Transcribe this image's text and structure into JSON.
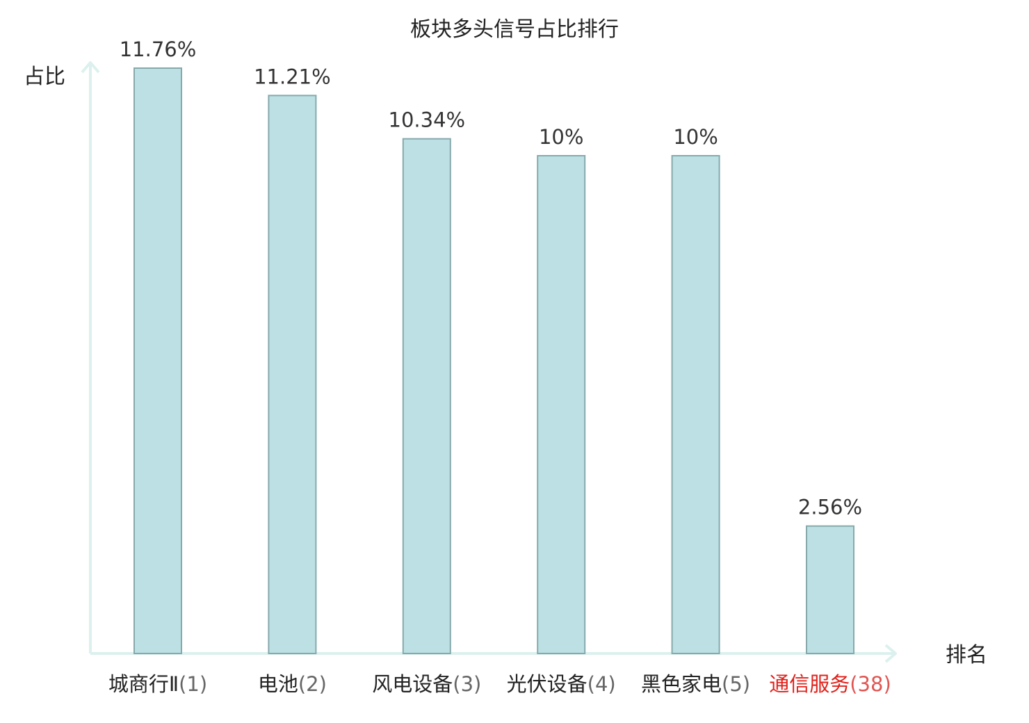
{
  "chart_data": {
    "type": "bar",
    "title": "板块多头信号占比排行",
    "ylabel": "占比",
    "xlabel": "排名",
    "categories": [
      "城商行Ⅱ",
      "电池",
      "风电设备",
      "光伏设备",
      "黑色家电",
      "通信服务"
    ],
    "ranks": [
      "(1)",
      "(2)",
      "(3)",
      "(4)",
      "(5)",
      "(38)"
    ],
    "values": [
      11.76,
      11.21,
      10.34,
      10,
      10,
      2.56
    ],
    "value_labels": [
      "11.76%",
      "11.21%",
      "10.34%",
      "10%",
      "10%",
      "2.56%"
    ],
    "highlight_index": 5,
    "ylim": [
      0,
      12.5
    ],
    "grid": false,
    "colors": {
      "bar_fill": "#bce0e3",
      "bar_stroke": "#86a9ac",
      "axis": "#dcf1ee",
      "label": "#222222",
      "highlight_cat": "#e0201a",
      "highlight_rank": "#e05551"
    }
  }
}
